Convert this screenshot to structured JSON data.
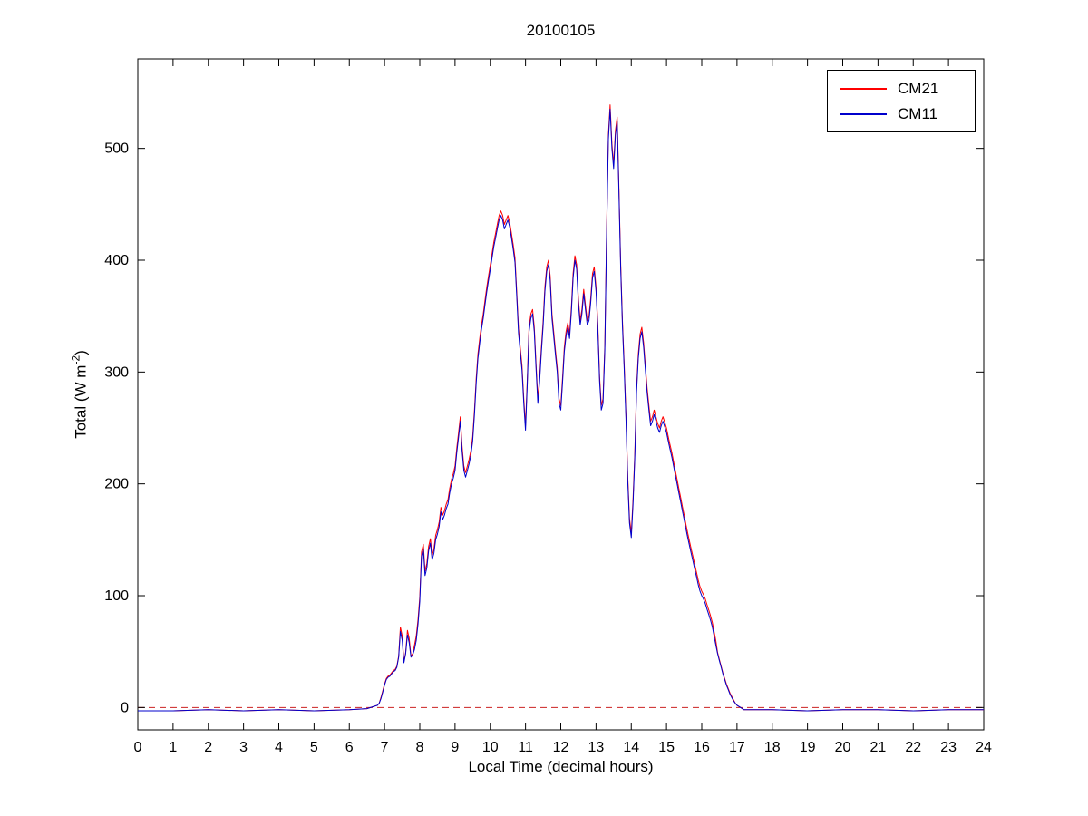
{
  "chart_data": {
    "type": "line",
    "title": "20100105",
    "xlabel": "Local Time (decimal hours)",
    "ylabel": "Total (W m-2)",
    "ylabel_parts": [
      "Total (W m",
      "-2",
      ")"
    ],
    "xlim": [
      0,
      24
    ],
    "ylim": [
      -20,
      580
    ],
    "grid": false,
    "legend_position": "top-right",
    "legend": [
      "CM21",
      "CM11"
    ],
    "xticks": [
      0,
      1,
      2,
      3,
      4,
      5,
      6,
      7,
      8,
      9,
      10,
      11,
      12,
      13,
      14,
      15,
      16,
      17,
      18,
      19,
      20,
      21,
      22,
      23,
      24
    ],
    "xtick_labels": [
      "0",
      "1",
      "2",
      "3",
      "4",
      "5",
      "6",
      "7",
      "8",
      "9",
      "10",
      "11",
      "12",
      "13",
      "14",
      "15",
      "16",
      "17",
      "18",
      "19",
      "20",
      "21",
      "22",
      "23",
      "24"
    ],
    "yticks": [
      0,
      100,
      200,
      300,
      400,
      500
    ],
    "ytick_labels": [
      "0",
      "100",
      "200",
      "300",
      "400",
      "500"
    ],
    "axis_color": "#000000",
    "zero_line": {
      "y": 0,
      "color": "#cc2222",
      "style": "dashed"
    },
    "x": [
      0,
      1,
      2,
      3,
      4,
      5,
      6,
      6.5,
      6.8,
      6.85,
      6.9,
      6.95,
      7,
      7.05,
      7.1,
      7.15,
      7.2,
      7.25,
      7.3,
      7.35,
      7.4,
      7.45,
      7.5,
      7.55,
      7.6,
      7.65,
      7.7,
      7.75,
      7.8,
      7.85,
      7.9,
      7.95,
      8,
      8.05,
      8.1,
      8.15,
      8.2,
      8.25,
      8.3,
      8.35,
      8.4,
      8.45,
      8.5,
      8.55,
      8.6,
      8.65,
      8.7,
      8.75,
      8.8,
      8.85,
      8.9,
      8.95,
      9,
      9.05,
      9.1,
      9.15,
      9.2,
      9.25,
      9.3,
      9.35,
      9.4,
      9.45,
      9.5,
      9.55,
      9.6,
      9.65,
      9.7,
      9.75,
      9.8,
      9.85,
      9.9,
      9.95,
      10,
      10.05,
      10.1,
      10.15,
      10.2,
      10.25,
      10.3,
      10.35,
      10.4,
      10.45,
      10.5,
      10.55,
      10.6,
      10.65,
      10.7,
      10.75,
      10.8,
      10.85,
      10.9,
      10.95,
      11,
      11.05,
      11.1,
      11.15,
      11.2,
      11.25,
      11.3,
      11.35,
      11.4,
      11.45,
      11.5,
      11.55,
      11.6,
      11.65,
      11.7,
      11.75,
      11.8,
      11.85,
      11.9,
      11.95,
      12,
      12.05,
      12.1,
      12.15,
      12.2,
      12.25,
      12.3,
      12.35,
      12.4,
      12.45,
      12.5,
      12.55,
      12.6,
      12.65,
      12.7,
      12.75,
      12.8,
      12.85,
      12.9,
      12.95,
      13,
      13.05,
      13.1,
      13.15,
      13.2,
      13.25,
      13.3,
      13.35,
      13.4,
      13.45,
      13.5,
      13.55,
      13.6,
      13.65,
      13.7,
      13.75,
      13.8,
      13.85,
      13.9,
      13.95,
      14,
      14.05,
      14.1,
      14.15,
      14.2,
      14.25,
      14.3,
      14.35,
      14.4,
      14.45,
      14.5,
      14.55,
      14.6,
      14.65,
      14.7,
      14.75,
      14.8,
      14.85,
      14.9,
      14.95,
      15,
      15.05,
      15.1,
      15.15,
      15.2,
      15.25,
      15.3,
      15.35,
      15.4,
      15.45,
      15.5,
      15.55,
      15.6,
      15.65,
      15.7,
      15.75,
      15.8,
      15.85,
      15.9,
      15.95,
      16,
      16.05,
      16.1,
      16.15,
      16.2,
      16.25,
      16.3,
      16.35,
      16.4,
      16.45,
      16.5,
      16.55,
      16.6,
      16.65,
      16.7,
      16.75,
      16.8,
      16.85,
      16.9,
      16.95,
      17,
      17.05,
      17.1,
      17.15,
      17.2,
      17.5,
      18,
      19,
      20,
      21,
      22,
      23,
      24
    ],
    "series": [
      {
        "name": "CM21",
        "color": "#ff0000",
        "values": [
          -3,
          -3,
          -2,
          -3,
          -2,
          -3,
          -2,
          -1,
          2,
          4,
          9,
          15,
          21,
          26,
          28,
          29,
          31,
          33,
          34,
          37,
          46,
          72,
          64,
          41,
          49,
          69,
          62,
          46,
          48,
          56,
          64,
          79,
          99,
          139,
          146,
          122,
          129,
          144,
          151,
          136,
          142,
          154,
          159,
          166,
          179,
          172,
          176,
          182,
          186,
          196,
          204,
          209,
          216,
          232,
          246,
          260,
          234,
          216,
          210,
          216,
          222,
          230,
          242,
          266,
          294,
          316,
          330,
          342,
          352,
          364,
          376,
          386,
          396,
          406,
          416,
          424,
          432,
          440,
          444,
          440,
          432,
          436,
          440,
          434,
          424,
          414,
          402,
          372,
          339,
          322,
          306,
          276,
          252,
          294,
          340,
          352,
          356,
          340,
          306,
          276,
          296,
          322,
          346,
          376,
          394,
          400,
          386,
          352,
          336,
          319,
          304,
          276,
          270,
          294,
          322,
          336,
          344,
          334,
          358,
          388,
          404,
          396,
          366,
          346,
          356,
          374,
          360,
          346,
          350,
          366,
          388,
          394,
          376,
          344,
          296,
          270,
          276,
          324,
          424,
          512,
          539,
          504,
          486,
          516,
          528,
          466,
          396,
          346,
          306,
          262,
          206,
          169,
          156,
          186,
          226,
          286,
          316,
          334,
          340,
          326,
          306,
          286,
          270,
          256,
          260,
          266,
          260,
          254,
          250,
          256,
          260,
          255,
          250,
          242,
          235,
          228,
          220,
          212,
          204,
          196,
          188,
          180,
          172,
          164,
          156,
          149,
          142,
          135,
          128,
          121,
          114,
          108,
          104,
          101,
          97,
          92,
          87,
          82,
          76,
          68,
          60,
          49,
          43,
          37,
          31,
          26,
          21,
          17,
          13,
          10,
          7,
          4,
          2,
          1,
          0,
          -1,
          -2,
          -2,
          -2,
          -3,
          -2,
          -2,
          -3,
          -2,
          -2
        ]
      },
      {
        "name": "CM11",
        "color": "#0000cc",
        "values": [
          -3,
          -3,
          -2,
          -3,
          -2,
          -3,
          -2,
          -1,
          2,
          4,
          8,
          14,
          20,
          25,
          27,
          28,
          30,
          32,
          33,
          36,
          45,
          68,
          60,
          40,
          48,
          65,
          58,
          45,
          47,
          52,
          60,
          75,
          95,
          135,
          142,
          118,
          125,
          140,
          147,
          132,
          138,
          150,
          155,
          162,
          175,
          168,
          172,
          178,
          182,
          192,
          200,
          205,
          212,
          228,
          242,
          256,
          230,
          212,
          206,
          212,
          218,
          226,
          238,
          262,
          290,
          312,
          326,
          338,
          348,
          360,
          372,
          382,
          392,
          402,
          412,
          420,
          428,
          436,
          440,
          436,
          428,
          432,
          436,
          430,
          420,
          410,
          398,
          368,
          335,
          318,
          302,
          272,
          248,
          290,
          336,
          348,
          352,
          336,
          302,
          272,
          292,
          318,
          342,
          372,
          390,
          396,
          382,
          348,
          332,
          315,
          300,
          272,
          266,
          290,
          318,
          332,
          340,
          330,
          354,
          384,
          400,
          392,
          362,
          342,
          352,
          370,
          356,
          342,
          346,
          362,
          384,
          390,
          372,
          340,
          292,
          266,
          272,
          320,
          420,
          508,
          535,
          500,
          482,
          512,
          524,
          462,
          392,
          342,
          302,
          258,
          202,
          165,
          152,
          182,
          222,
          282,
          312,
          330,
          336,
          322,
          302,
          282,
          266,
          252,
          256,
          262,
          256,
          250,
          246,
          252,
          256,
          251,
          246,
          238,
          231,
          224,
          216,
          208,
          200,
          192,
          184,
          176,
          168,
          160,
          152,
          145,
          138,
          131,
          124,
          117,
          110,
          104,
          100,
          97,
          93,
          88,
          83,
          78,
          72,
          64,
          56,
          48,
          42,
          36,
          30,
          25,
          20,
          16,
          12,
          9,
          6,
          4,
          2,
          1,
          0,
          -1,
          -2,
          -2,
          -2,
          -3,
          -2,
          -2,
          -3,
          -2,
          -2
        ]
      }
    ]
  }
}
